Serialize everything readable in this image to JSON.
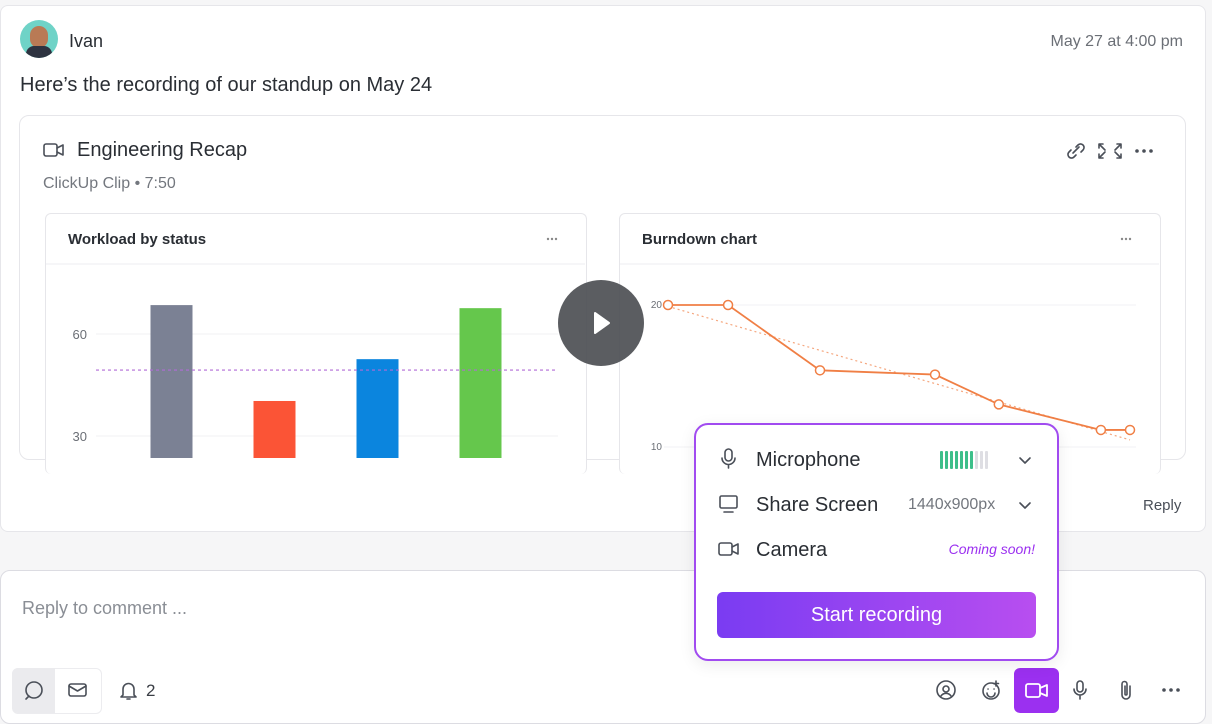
{
  "comment": {
    "author": "Ivan",
    "timestamp": "May 27 at 4:00 pm",
    "text": "Here’s the recording of our standup on May 24",
    "reply_action": "Reply"
  },
  "clip": {
    "title": "Engineering Recap",
    "meta": "ClickUp Clip • 7:50"
  },
  "chart_data": [
    {
      "type": "bar",
      "title": "Workload by status",
      "values": [
        68.5,
        40.3,
        52.6,
        67.6
      ],
      "colors": [
        "#7b8194",
        "#fb5436",
        "#0b85de",
        "#65c74c"
      ],
      "average": 49.4,
      "average_color": "#b06bd6",
      "ylim": [
        0,
        80
      ],
      "yticks": [
        30,
        60
      ],
      "grid": true
    },
    {
      "type": "line",
      "title": "Burndown chart",
      "x": [
        0,
        1.3,
        3.29,
        5.78,
        7.16,
        9.37,
        10
      ],
      "xlim": [
        0,
        10
      ],
      "ylim": [
        10,
        20
      ],
      "yticks": [
        20,
        10
      ],
      "grid": true,
      "series": [
        {
          "values": [
            20,
            20,
            15.4,
            15.1,
            13.0,
            11.2,
            11.2
          ],
          "color": "#f07f45"
        }
      ],
      "ideal": {
        "values": [
          19.9,
          10.5
        ],
        "color": "#f5a77f"
      }
    }
  ],
  "recorder": {
    "items": [
      {
        "label": "Microphone",
        "level": 7,
        "level_max": 10
      },
      {
        "label": "Share Screen",
        "value": "1440x900px"
      },
      {
        "label": "Camera",
        "note": "Coming soon!"
      }
    ],
    "button": "Start recording"
  },
  "composer": {
    "placeholder": "Reply to comment ...",
    "notifications": 2
  }
}
